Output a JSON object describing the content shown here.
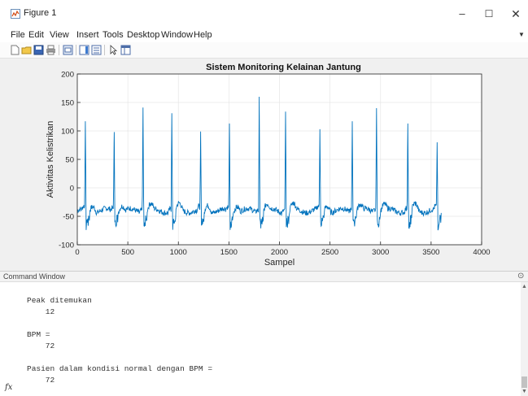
{
  "window": {
    "title": "Figure 1",
    "controls": {
      "minimize": "–",
      "maximize": "☐",
      "close": "✕"
    }
  },
  "menubar": {
    "items": [
      "File",
      "Edit",
      "View",
      "Insert",
      "Tools",
      "Desktop",
      "Window",
      "Help"
    ]
  },
  "toolbar": {
    "icons": [
      "new-figure-icon",
      "open-file-icon",
      "save-icon",
      "print-icon",
      "link-plot-icon",
      "insert-colorbar-icon",
      "insert-legend-icon",
      "edit-plot-icon",
      "property-inspector-icon"
    ]
  },
  "colors": {
    "signal": "#0072bd",
    "plot_bg": "#ffffff",
    "figure_bg": "#f0f0f0",
    "grid": "#e6e6e6"
  },
  "chart_data": {
    "type": "line",
    "title": "Sistem Monitoring Kelainan Jantung",
    "xlabel": "Sampel",
    "ylabel": "Aktivitas Kelistrikan",
    "xlim": [
      0,
      4000
    ],
    "ylim": [
      -100,
      200
    ],
    "xticks": [
      0,
      500,
      1000,
      1500,
      2000,
      2500,
      3000,
      3500,
      4000
    ],
    "yticks": [
      -100,
      -50,
      0,
      50,
      100,
      150,
      200
    ],
    "grid": true,
    "series": [
      {
        "baseline": -40,
        "length": 3600,
        "peaks": [
          {
            "x": 80,
            "y": 117
          },
          {
            "x": 365,
            "y": 98
          },
          {
            "x": 650,
            "y": 141
          },
          {
            "x": 935,
            "y": 131
          },
          {
            "x": 1220,
            "y": 99
          },
          {
            "x": 1505,
            "y": 113
          },
          {
            "x": 1800,
            "y": 160
          },
          {
            "x": 2060,
            "y": 134
          },
          {
            "x": 2400,
            "y": 103
          },
          {
            "x": 2720,
            "y": 117
          },
          {
            "x": 2960,
            "y": 140
          },
          {
            "x": 3270,
            "y": 113
          },
          {
            "x": 3560,
            "y": 80
          }
        ]
      }
    ]
  },
  "command_window": {
    "title": "Command Window",
    "lines": [
      "Peak ditemukan",
      "    12",
      "",
      "BPM =",
      "    72",
      "",
      "Pasien dalam kondisi normal dengan BPM =",
      "    72"
    ],
    "prompt_icon": "fx"
  }
}
